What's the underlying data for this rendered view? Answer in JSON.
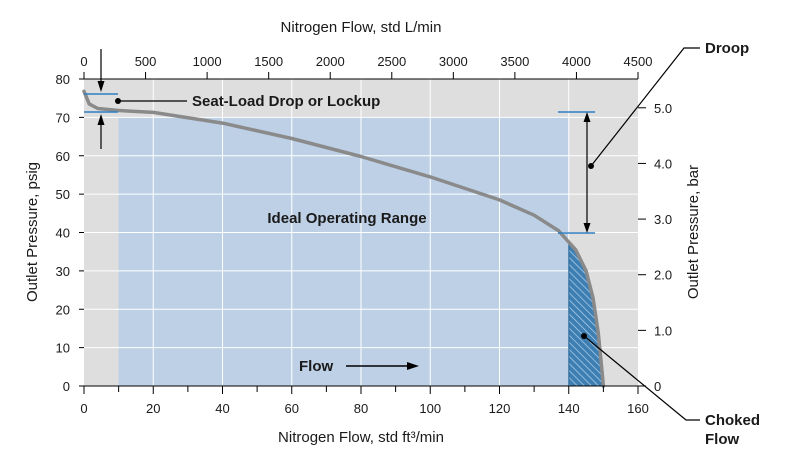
{
  "chart_data": {
    "type": "area",
    "x_bottom": {
      "label": "Nitrogen Flow, std ft³/min",
      "range": [
        0,
        160
      ],
      "major_ticks": [
        0,
        20,
        40,
        60,
        80,
        100,
        120,
        140,
        160
      ],
      "minor_ticks": [
        10,
        30,
        50,
        70,
        90,
        110,
        130,
        150
      ]
    },
    "x_top": {
      "label": "Nitrogen Flow, std L/min",
      "range": [
        0,
        4500
      ],
      "ticks": [
        0,
        500,
        1000,
        1500,
        2000,
        2500,
        3000,
        3500,
        4000,
        4500
      ]
    },
    "y_left": {
      "label": "Outlet Pressure, psig",
      "range": [
        0,
        80
      ],
      "ticks": [
        0,
        10,
        20,
        30,
        40,
        50,
        60,
        70,
        80
      ]
    },
    "y_right": {
      "label": "Outlet Pressure, bar",
      "ticks": [
        {
          "label": "0",
          "psig": 0
        },
        {
          "label": "1.0",
          "psig": 14.5
        },
        {
          "label": "2.0",
          "psig": 29.0
        },
        {
          "label": "3.0",
          "psig": 43.5
        },
        {
          "label": "4.0",
          "psig": 58.0
        },
        {
          "label": "5.0",
          "psig": 72.5
        }
      ]
    },
    "grid": true,
    "regions": {
      "ideal_operating_range": {
        "x": [
          10,
          140
        ],
        "y": [
          0,
          70
        ]
      },
      "choked_flow": {
        "x_from": 140
      }
    },
    "series": [
      {
        "values": [
          {
            "x": 0,
            "y": 76.8
          },
          {
            "x": 1.5,
            "y": 73.5
          },
          {
            "x": 4,
            "y": 72.3
          },
          {
            "x": 10,
            "y": 71.8
          },
          {
            "x": 20,
            "y": 71.3
          },
          {
            "x": 40,
            "y": 68.5
          },
          {
            "x": 60,
            "y": 64.5
          },
          {
            "x": 80,
            "y": 59.8
          },
          {
            "x": 100,
            "y": 54.5
          },
          {
            "x": 120,
            "y": 48.5
          },
          {
            "x": 130,
            "y": 44.5
          },
          {
            "x": 137,
            "y": 40.5
          },
          {
            "x": 142,
            "y": 35.5
          },
          {
            "x": 145,
            "y": 30
          },
          {
            "x": 147,
            "y": 23
          },
          {
            "x": 148.5,
            "y": 14
          },
          {
            "x": 149.5,
            "y": 5
          },
          {
            "x": 150,
            "y": 0
          }
        ]
      }
    ],
    "annotations": [
      {
        "text": "Droop",
        "points_to": {
          "x": 145,
          "y_from": 40,
          "y_to": 71.8
        }
      },
      {
        "text": "Seat-Load Drop or Lockup",
        "points_to": {
          "x": 10,
          "y": 76.8
        }
      },
      {
        "text": "Ideal Operating Range",
        "at": {
          "x": 76,
          "y": 44
        }
      },
      {
        "text": "Flow",
        "at": {
          "x": 69,
          "y": 5
        }
      },
      {
        "text_lines": [
          "Choked",
          "Flow"
        ],
        "points_to": {
          "x": 143.5,
          "y": 14
        }
      }
    ]
  }
}
